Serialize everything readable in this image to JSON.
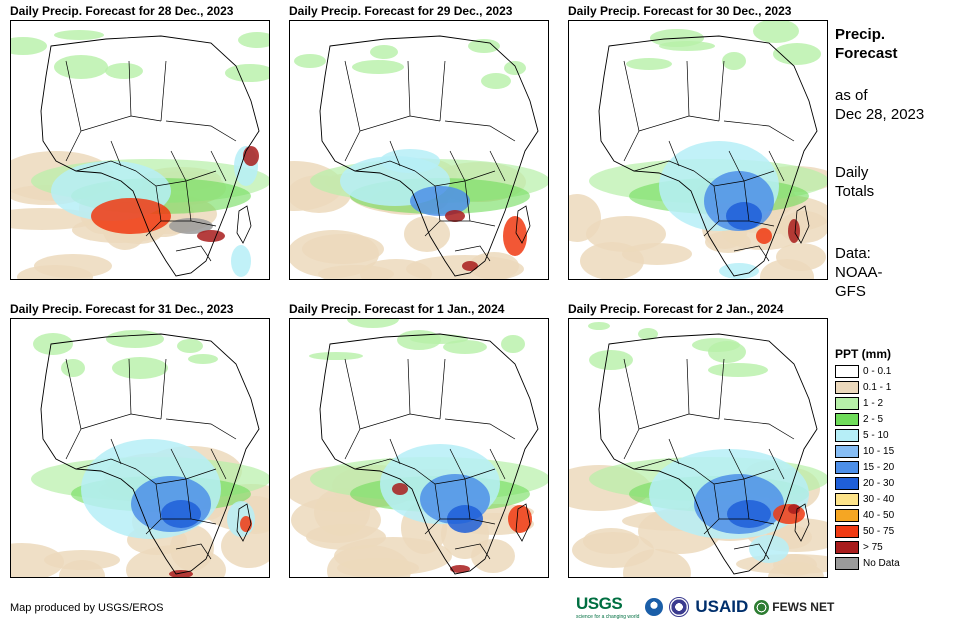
{
  "panels": [
    {
      "title": "Daily Precip. Forecast for 28 Dec., 2023",
      "pattern": "p1"
    },
    {
      "title": "Daily Precip. Forecast for 29 Dec., 2023",
      "pattern": "p2"
    },
    {
      "title": "Daily Precip. Forecast for 30 Dec., 2023",
      "pattern": "p3"
    },
    {
      "title": "Daily Precip. Forecast for 31 Dec., 2023",
      "pattern": "p4"
    },
    {
      "title": "Daily Precip. Forecast for 1 Jan., 2024",
      "pattern": "p5"
    },
    {
      "title": "Daily Precip. Forecast for 2 Jan., 2024",
      "pattern": "p6"
    }
  ],
  "sidebar": {
    "title_line1": "Precip.",
    "title_line2": "Forecast",
    "asof_line1": "as of",
    "asof_line2": "Dec 28, 2023",
    "totals_line1": "Daily",
    "totals_line2": "Totals",
    "data_line1": "Data:",
    "data_line2": "NOAA-",
    "data_line3": "GFS"
  },
  "legend": {
    "title": "PPT (mm)",
    "items": [
      {
        "label": "0 - 0.1",
        "color": "#ffffff"
      },
      {
        "label": "0.1 - 1",
        "color": "#ecd9bc"
      },
      {
        "label": "1 - 2",
        "color": "#b7f0a8"
      },
      {
        "label": "2 - 5",
        "color": "#6fdc5a"
      },
      {
        "label": "5 - 10",
        "color": "#b6eef7"
      },
      {
        "label": "10 - 15",
        "color": "#86bdf5"
      },
      {
        "label": "15 - 20",
        "color": "#4d8fe8"
      },
      {
        "label": "20 - 30",
        "color": "#1f5fd8"
      },
      {
        "label": "30 - 40",
        "color": "#fde38a"
      },
      {
        "label": "40 - 50",
        "color": "#f5a623"
      },
      {
        "label": "50 - 75",
        "color": "#f03a12"
      },
      {
        "label": "> 75",
        "color": "#a81c1c"
      },
      {
        "label": "No Data",
        "color": "#9a9a9a"
      }
    ]
  },
  "footer": {
    "credit": "Map produced by USGS/EROS",
    "logo_usgs": "USGS",
    "logo_usgs_tagline": "science for a changing world",
    "logo_usaid": "USAID",
    "logo_fews": "FEWS NET"
  }
}
